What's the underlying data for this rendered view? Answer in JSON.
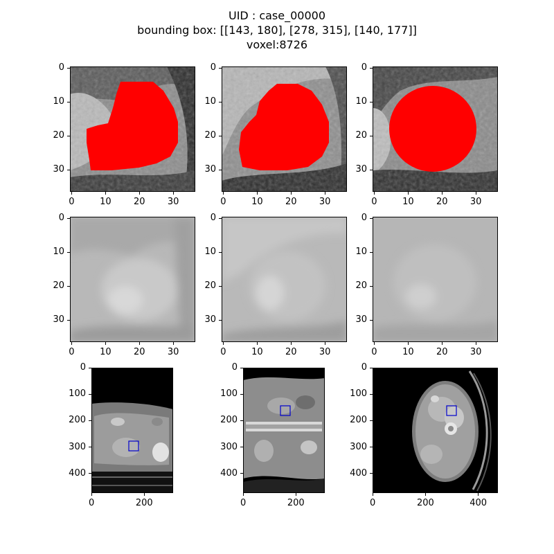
{
  "figure": {
    "title_uid": "UID : case_00000",
    "title_bbox": "bounding box: [[143, 180], [278, 315], [140, 177]]",
    "title_voxel": "voxel:8726"
  },
  "colors": {
    "mask": "#ff0000",
    "roi_box": "#0000cc",
    "background": "#ffffff"
  },
  "rows": [
    {
      "name": "crop-with-mask",
      "panels": [
        {
          "name": "crop-mask-axis0",
          "xticks": [
            "0",
            "10",
            "20",
            "30"
          ],
          "yticks": [
            "0",
            "10",
            "20",
            "30"
          ]
        },
        {
          "name": "crop-mask-axis1",
          "xticks": [
            "0",
            "10",
            "20",
            "30"
          ],
          "yticks": [
            "0",
            "10",
            "20",
            "30"
          ]
        },
        {
          "name": "crop-mask-axis2",
          "xticks": [
            "0",
            "10",
            "20",
            "30"
          ],
          "yticks": [
            "0",
            "10",
            "20",
            "30"
          ]
        }
      ]
    },
    {
      "name": "crop-raw",
      "panels": [
        {
          "name": "crop-raw-axis0",
          "xticks": [
            "0",
            "10",
            "20",
            "30"
          ],
          "yticks": [
            "0",
            "10",
            "20",
            "30"
          ]
        },
        {
          "name": "crop-raw-axis1",
          "xticks": [
            "0",
            "10",
            "20",
            "30"
          ],
          "yticks": [
            "0",
            "10",
            "20",
            "30"
          ]
        },
        {
          "name": "crop-raw-axis2",
          "xticks": [
            "0",
            "10",
            "20",
            "30"
          ],
          "yticks": [
            "0",
            "10",
            "20",
            "30"
          ]
        }
      ]
    },
    {
      "name": "full-slices",
      "panels": [
        {
          "name": "full-slice-axis0",
          "xticks": [
            "0",
            "200"
          ],
          "yticks": [
            "0",
            "100",
            "200",
            "300",
            "400"
          ]
        },
        {
          "name": "full-slice-axis1",
          "xticks": [
            "0",
            "200"
          ],
          "yticks": [
            "0",
            "100",
            "200",
            "300",
            "400"
          ]
        },
        {
          "name": "full-slice-axis2",
          "xticks": [
            "0",
            "200",
            "400"
          ],
          "yticks": [
            "0",
            "100",
            "200",
            "300",
            "400"
          ]
        }
      ]
    }
  ]
}
